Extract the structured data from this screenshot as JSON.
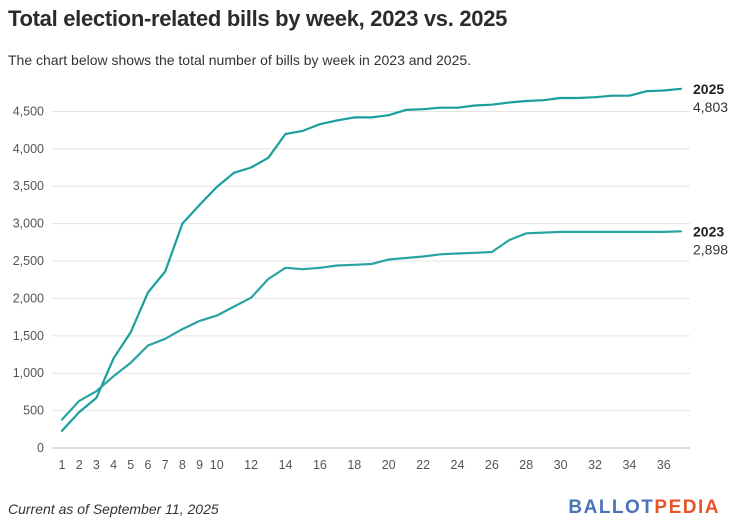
{
  "title": "Total election-related bills by week, 2023 vs. 2025",
  "subtitle": "The chart below shows the total number of bills by week in 2023 and 2025.",
  "footnote": "Current as of September 11, 2025",
  "logo": {
    "part1": "BALLOT",
    "part2": "PEDIA",
    "color1": "#4a74b5",
    "color2": "#e8542a"
  },
  "chart_data": {
    "type": "line",
    "title": "Total election-related bills by week, 2023 vs. 2025",
    "xlabel": "",
    "ylabel": "",
    "x": [
      1,
      2,
      3,
      4,
      5,
      6,
      7,
      8,
      9,
      10,
      11,
      12,
      13,
      14,
      15,
      16,
      17,
      18,
      19,
      20,
      21,
      22,
      23,
      24,
      25,
      26,
      27,
      28,
      29,
      30,
      31,
      32,
      33,
      34,
      35,
      36,
      37
    ],
    "xticks": [
      1,
      2,
      3,
      4,
      5,
      6,
      7,
      8,
      9,
      10,
      12,
      14,
      16,
      18,
      20,
      22,
      24,
      26,
      28,
      30,
      32,
      34,
      36
    ],
    "yticks": [
      0,
      500,
      1000,
      1500,
      2000,
      2500,
      3000,
      3500,
      4000,
      4500
    ],
    "ytick_labels": [
      "0",
      "500",
      "1,000",
      "1,500",
      "2,000",
      "2,500",
      "3,000",
      "3,500",
      "4,000",
      "4,500"
    ],
    "xlim": [
      1,
      37
    ],
    "ylim": [
      0,
      4800
    ],
    "grid": "horizontal",
    "series": [
      {
        "name": "2025",
        "color": "#1a9e9e",
        "end_label": "4,803",
        "values": [
          230,
          480,
          670,
          1200,
          1550,
          2080,
          2360,
          3000,
          3250,
          3490,
          3680,
          3750,
          3880,
          4200,
          4240,
          4330,
          4380,
          4420,
          4420,
          4450,
          4520,
          4530,
          4550,
          4550,
          4580,
          4590,
          4620,
          4640,
          4650,
          4680,
          4680,
          4690,
          4710,
          4710,
          4770,
          4780,
          4803
        ]
      },
      {
        "name": "2023",
        "color": "#2aa3a3",
        "end_label": "2,898",
        "values": [
          380,
          630,
          760,
          960,
          1140,
          1370,
          1460,
          1590,
          1700,
          1770,
          1890,
          2010,
          2260,
          2410,
          2390,
          2410,
          2440,
          2450,
          2460,
          2520,
          2540,
          2560,
          2590,
          2600,
          2610,
          2620,
          2780,
          2870,
          2880,
          2890,
          2890,
          2890,
          2890,
          2890,
          2890,
          2890,
          2898
        ]
      }
    ]
  }
}
